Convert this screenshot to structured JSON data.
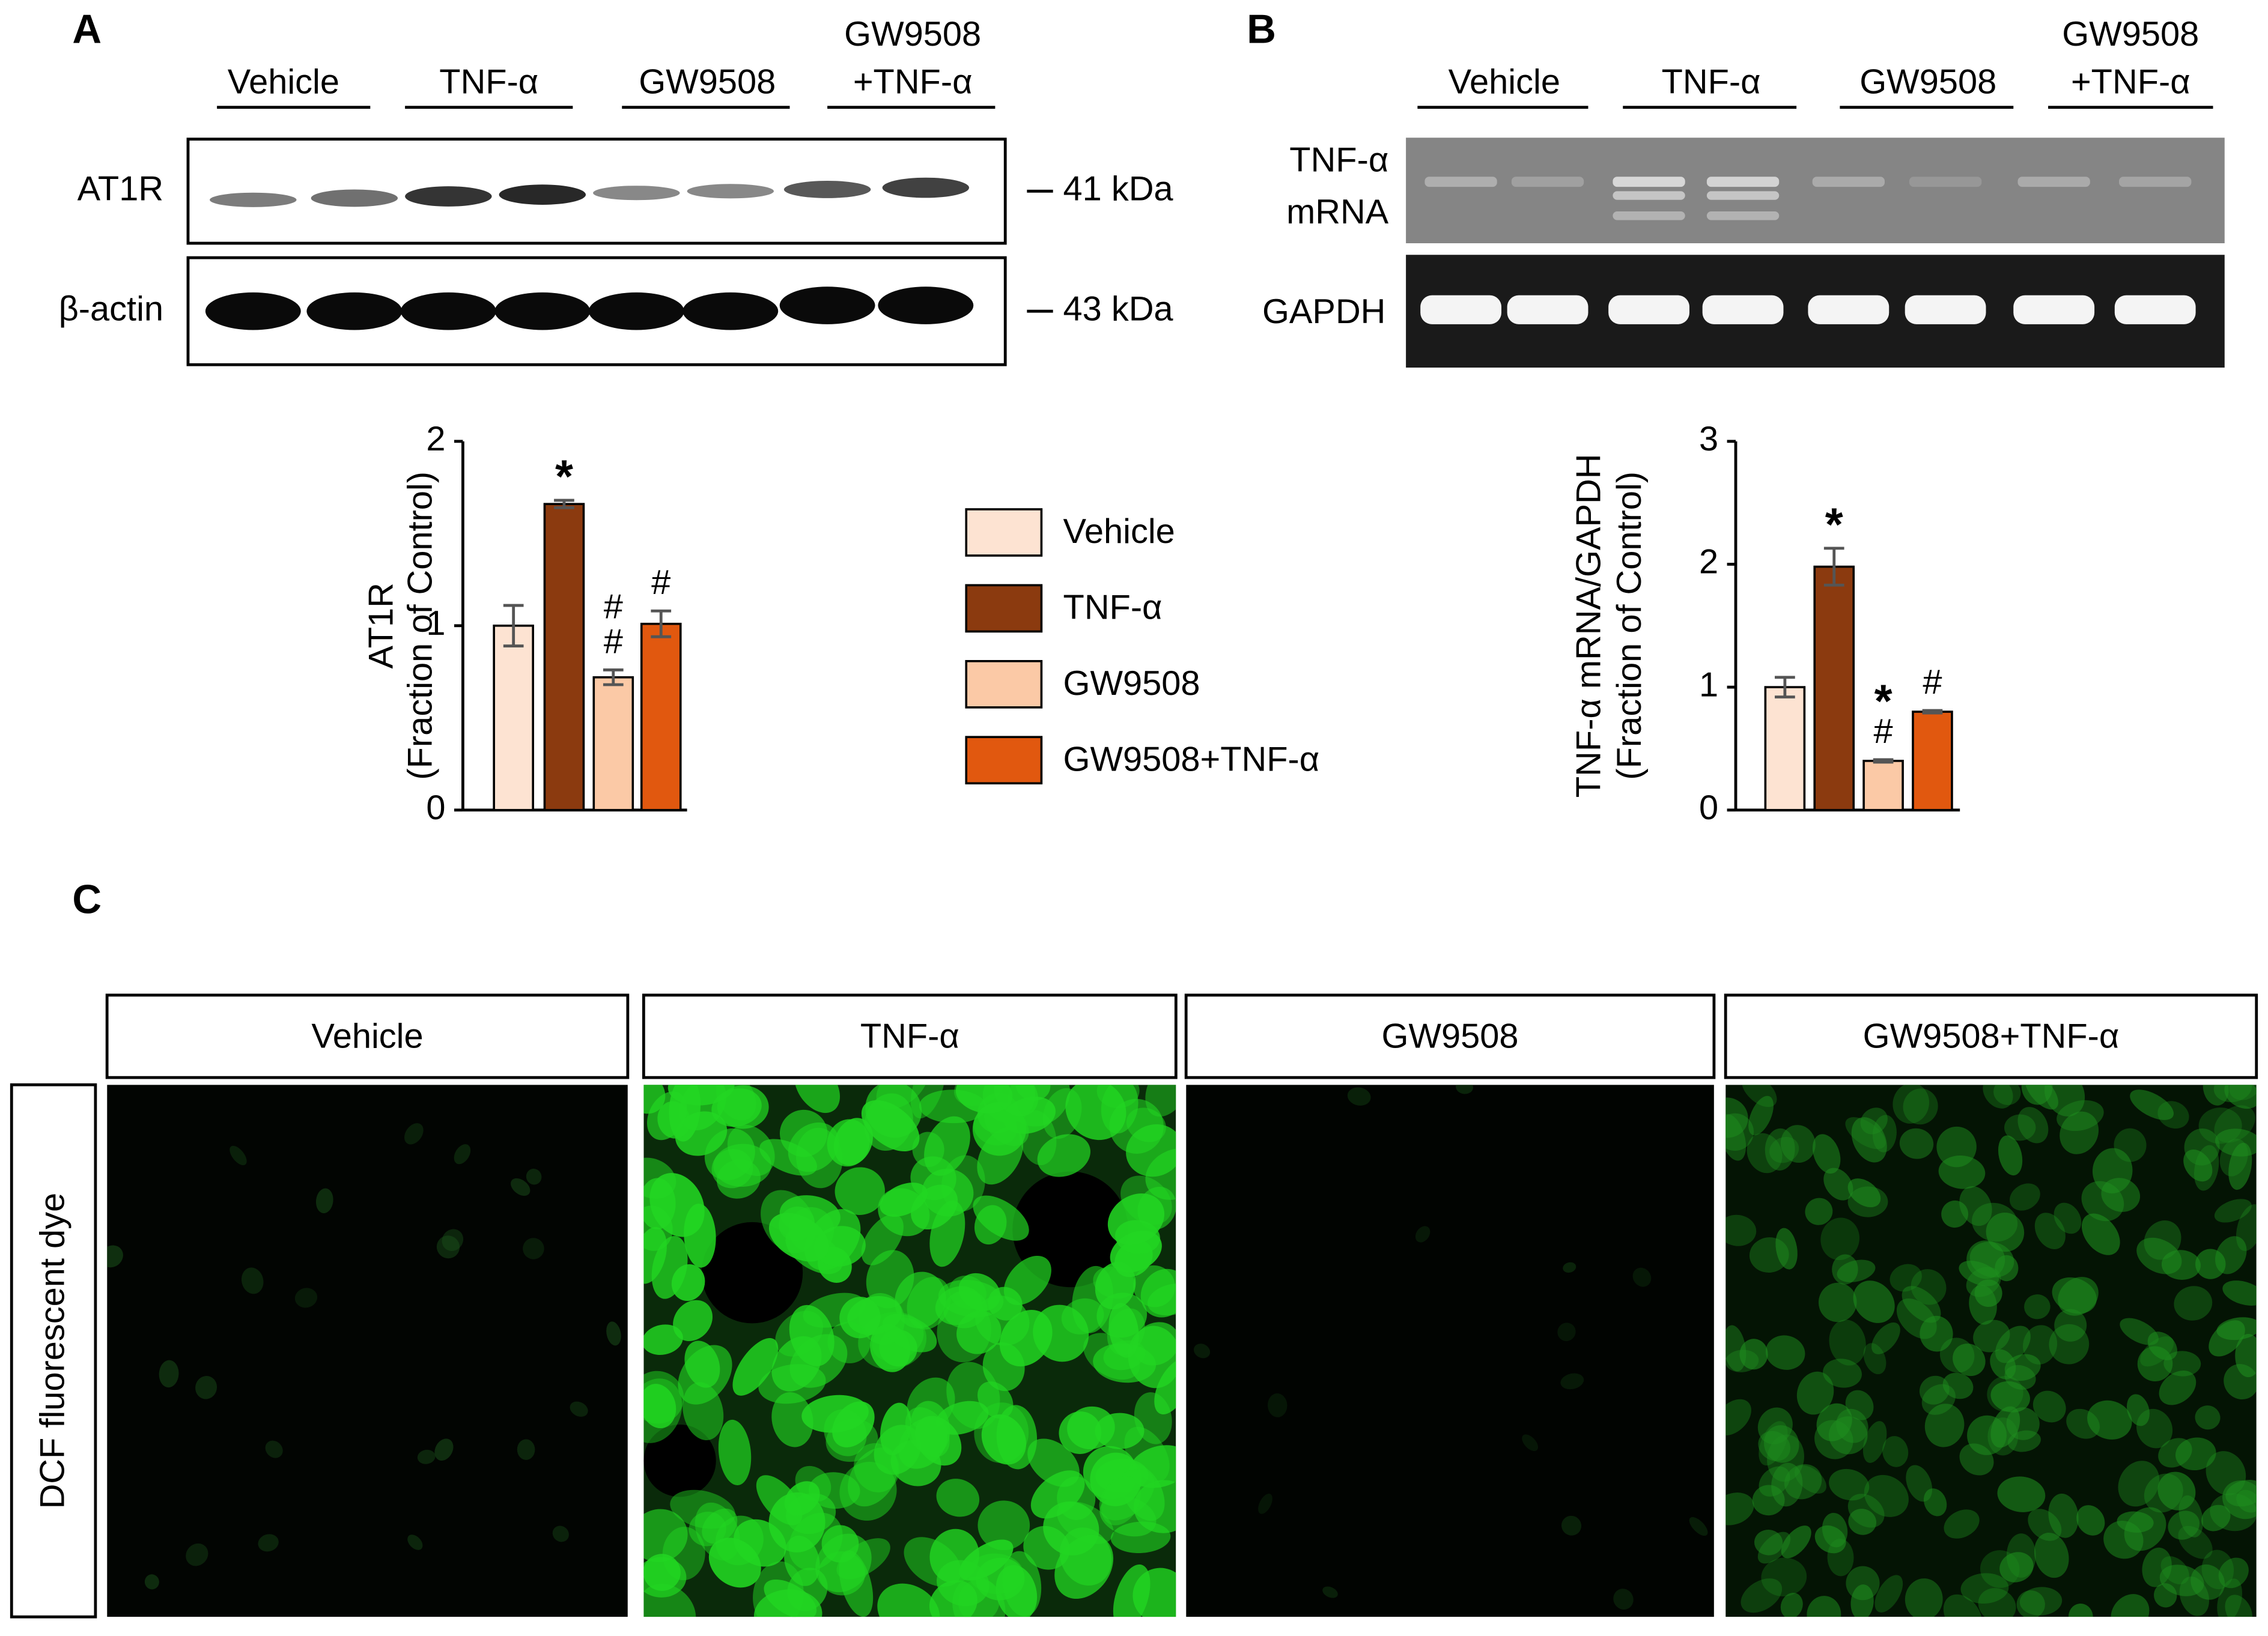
{
  "panels": {
    "a": "A",
    "b": "B",
    "c": "C"
  },
  "blot_a": {
    "groups": [
      [
        "Vehicle"
      ],
      [
        "TNF-α"
      ],
      [
        "GW9508"
      ],
      [
        "GW9508",
        "+TNF-α"
      ]
    ],
    "rows": [
      {
        "label": [
          "AT1R"
        ],
        "size": "41 kDa"
      },
      {
        "label": [
          "β-actin"
        ],
        "size": "43 kDa"
      }
    ]
  },
  "blot_b": {
    "groups": [
      [
        "Vehicle"
      ],
      [
        "TNF-α"
      ],
      [
        "GW9508"
      ],
      [
        "GW9508",
        "+TNF-α"
      ]
    ],
    "rows": [
      {
        "label": [
          "TNF-α",
          "mRNA"
        ]
      },
      {
        "label": [
          "GAPDH"
        ]
      }
    ]
  },
  "chart_data": [
    {
      "type": "bar",
      "ylabel": [
        "AT1R",
        "(Fraction of Control)"
      ],
      "categories": [
        "Vehicle",
        "TNF-α",
        "GW9508",
        "GW9508+TNF-α"
      ],
      "colors": [
        "#fde3d2",
        "#8b3a0f",
        "#fbc9a6",
        "#e1580f"
      ],
      "values": [
        1.0,
        1.66,
        0.72,
        1.01
      ],
      "errors": [
        0.11,
        0.02,
        0.04,
        0.07
      ],
      "annotations": [
        null,
        [
          "*"
        ],
        [
          "#",
          "#"
        ],
        [
          "#"
        ]
      ],
      "ylim": [
        0,
        2
      ],
      "yticks": [
        0,
        1,
        2
      ],
      "legend": true
    },
    {
      "type": "bar",
      "ylabel": [
        "TNF-α mRNA/GAPDH",
        "(Fraction of Control)"
      ],
      "categories": [
        "Vehicle",
        "TNF-α",
        "GW9508",
        "GW9508+TNF-α"
      ],
      "colors": [
        "#fde3d2",
        "#8b3a0f",
        "#fbc9a6",
        "#e1580f"
      ],
      "values": [
        1.0,
        1.98,
        0.4,
        0.8
      ],
      "errors": [
        0.08,
        0.15,
        0.01,
        0.01
      ],
      "annotations": [
        null,
        [
          "*"
        ],
        [
          "*",
          "#"
        ],
        [
          "#"
        ]
      ],
      "ylim": [
        0,
        3
      ],
      "yticks": [
        0,
        1,
        2,
        3
      ],
      "legend": false
    }
  ],
  "imaging": {
    "headers": [
      "Vehicle",
      "TNF-α",
      "GW9508",
      "GW9508+TNF-α"
    ],
    "row_label": "DCF fluorescent dye"
  }
}
